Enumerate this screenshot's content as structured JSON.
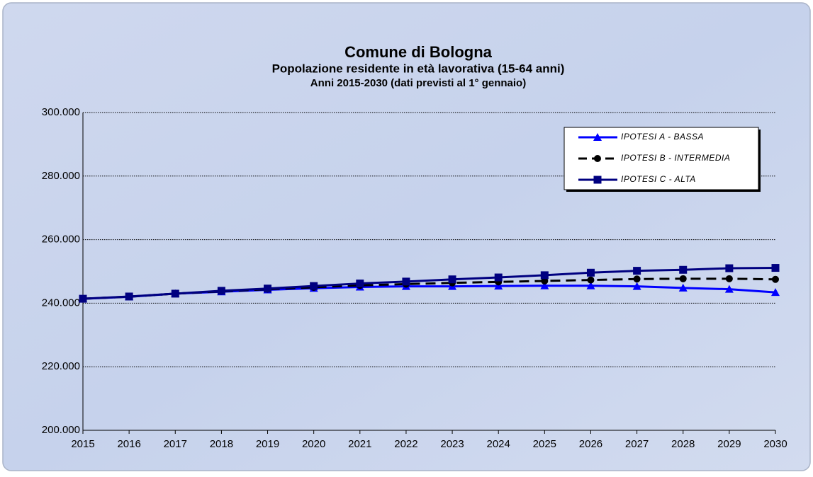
{
  "chart_data": {
    "type": "line",
    "title": "Comune di Bologna",
    "subtitle": "Popolazione residente in età lavorativa (15-64 anni)",
    "subtitle2": "Anni 2015-2030 (dati previsti al 1° gennaio)",
    "categories": [
      "2015",
      "2016",
      "2017",
      "2018",
      "2019",
      "2020",
      "2021",
      "2022",
      "2023",
      "2024",
      "2025",
      "2026",
      "2027",
      "2028",
      "2029",
      "2030"
    ],
    "series": [
      {
        "name": "IPOTESI A - BASSA",
        "color": "#0000ff",
        "marker": "triangle",
        "dashed": false,
        "values": [
          241400,
          242000,
          243000,
          243600,
          244200,
          244700,
          245100,
          245300,
          245300,
          245400,
          245500,
          245500,
          245300,
          244800,
          244400,
          243400
        ]
      },
      {
        "name": "IPOTESI B - INTERMEDIA",
        "color": "#000000",
        "marker": "circle",
        "dashed": true,
        "values": [
          241400,
          242050,
          243000,
          243750,
          244400,
          245000,
          245600,
          246000,
          246400,
          246700,
          247000,
          247300,
          247600,
          247700,
          247700,
          247500
        ]
      },
      {
        "name": "IPOTESI C - ALTA",
        "color": "#000080",
        "marker": "square",
        "dashed": false,
        "values": [
          241400,
          242100,
          243000,
          243900,
          244600,
          245400,
          246200,
          246800,
          247500,
          248100,
          248800,
          249600,
          250200,
          250500,
          251000,
          251100
        ]
      }
    ],
    "ylim": [
      200000,
      300000
    ],
    "yticks": [
      {
        "value": 200000,
        "label": "200.000"
      },
      {
        "value": 220000,
        "label": "220.000"
      },
      {
        "value": 240000,
        "label": "240.000"
      },
      {
        "value": 260000,
        "label": "260.000"
      },
      {
        "value": 280000,
        "label": "280.000"
      },
      {
        "value": 300000,
        "label": "300.000"
      }
    ],
    "grid": true,
    "legend": "top-right"
  }
}
